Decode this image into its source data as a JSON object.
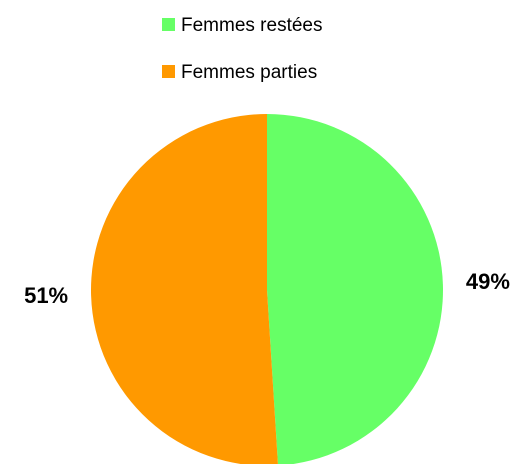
{
  "chart_data": {
    "type": "pie",
    "categories": [
      "Femmes restées",
      "Femmes parties"
    ],
    "values": [
      49,
      51
    ],
    "value_labels": [
      "49%",
      "51%"
    ],
    "colors": [
      "#66ff66",
      "#ff9900"
    ],
    "legend": "top"
  }
}
